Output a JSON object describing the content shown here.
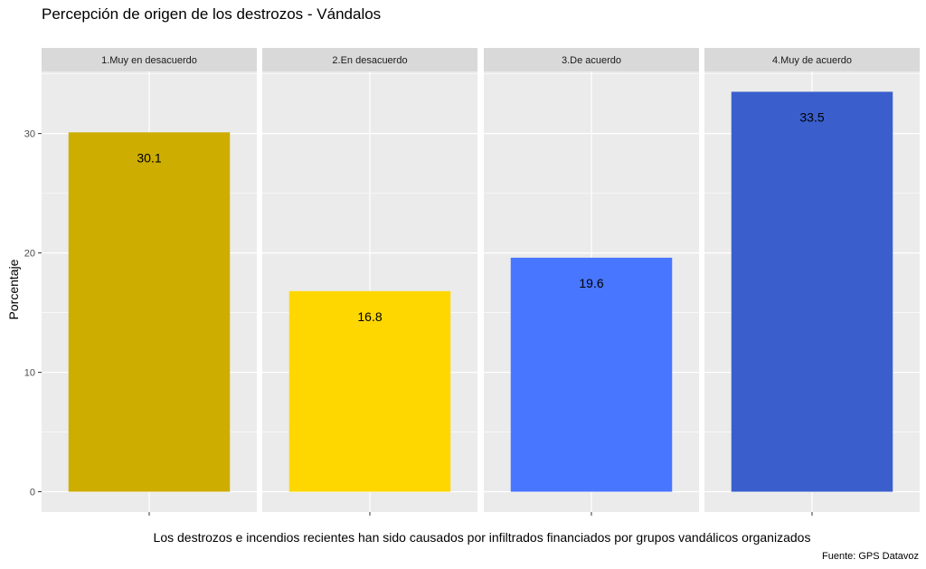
{
  "chart_data": {
    "type": "bar",
    "title": "Percepción de origen de los destrozos - Vándalos",
    "xlabel": "Los destrozos e incendios recientes han sido causados por infiltrados financiados por grupos vandálicos organizados",
    "ylabel": "Porcentaje",
    "caption": "Fuente: GPS Datavoz",
    "facets": [
      "1.Muy en desacuerdo",
      "2.En desacuerdo",
      "3.De acuerdo",
      "4.Muy de acuerdo"
    ],
    "values": [
      30.1,
      16.8,
      19.6,
      33.5
    ],
    "value_labels": [
      "30.1",
      "16.8",
      "19.6",
      "33.5"
    ],
    "colors": [
      "#CDAD00",
      "#FFD700",
      "#4876FF",
      "#3A5FCD"
    ],
    "ylim": [
      -1.7,
      35.2
    ],
    "yticks": [
      0,
      10,
      20,
      30
    ],
    "grid": true,
    "legend": "none",
    "panel_background": "#EBEBEB",
    "strip_background": "#D9D9D9"
  }
}
